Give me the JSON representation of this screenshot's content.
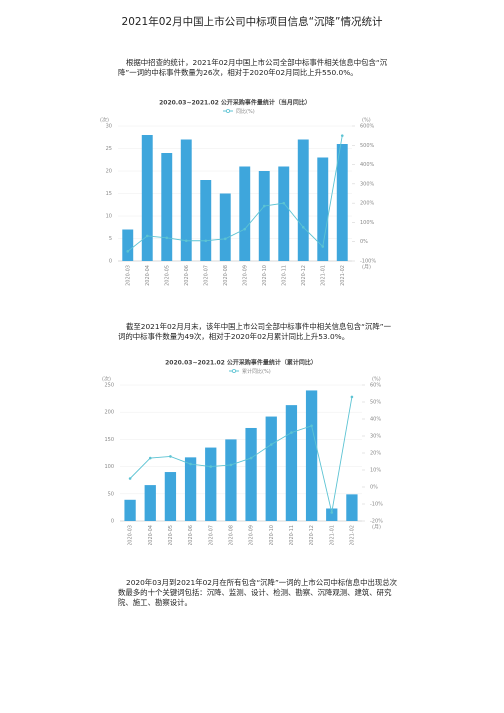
{
  "title": "2021年02月中国上市公司中标项目信息“沉降”情况统计",
  "paragraphs": [
    "根据中招查的统计，2021年02月中国上市公司全部中标事件相关信息中包含“沉降”一词的中标事件数量为26次，相对于2020年02月同比上升550.0%。",
    "截至2021年02月月末，该年中国上市公司全部中标事件中相关信息包含“沉降”一词的中标事件数量为49次，相对于2020年02月累计同比上升53.0%。",
    "2020年03月到2021年02月在所有包含“沉降”一词的上市公司中标信息中出现总次数最多的十个关键词包括：沉降、监测、设计、检测、勘察、沉降观测、建筑、研究院、施工、勘察设计。"
  ],
  "chart_data": [
    {
      "type": "bar_line",
      "title": "2020.03~2021.02 公开采购事件量统计（当月同比）",
      "ylabel": "(次)",
      "y2label": "(%)",
      "xlabel": "(月)",
      "categories": [
        "2020-03",
        "2020-04",
        "2020-05",
        "2020-06",
        "2020-07",
        "2020-08",
        "2020-09",
        "2020-10",
        "2020-11",
        "2020-12",
        "2021-01",
        "2021-02"
      ],
      "series": [
        {
          "type": "bar",
          "color": "#3ea6dc",
          "values": [
            7,
            28,
            24,
            27,
            18,
            15,
            21,
            20,
            21,
            27,
            23,
            26
          ]
        },
        {
          "type": "line",
          "name": "同比(%)",
          "color": "#5cc3d3",
          "axis": "y2",
          "values": [
            -50,
            30,
            20,
            5,
            5,
            15,
            65,
            185,
            200,
            75,
            -25,
            550
          ]
        }
      ],
      "ylim": [
        0,
        30
      ],
      "yticks": [
        0,
        5,
        10,
        15,
        20,
        25,
        30
      ],
      "y2lim": [
        -100,
        600
      ],
      "y2ticks": [
        {
          "value": -100,
          "label": "-100%"
        },
        {
          "value": 0,
          "label": "0%"
        },
        {
          "value": 100,
          "label": "100%"
        },
        {
          "value": 200,
          "label": "200%"
        },
        {
          "value": 300,
          "label": "300%"
        },
        {
          "value": 400,
          "label": "400%"
        },
        {
          "value": 500,
          "label": "500%"
        },
        {
          "value": 600,
          "label": "600%"
        }
      ],
      "grid": true
    },
    {
      "type": "bar_line",
      "title": "2020.03~2021.02 公开采购事件量统计（累计同比）",
      "ylabel": "(次)",
      "y2label": "(%)",
      "xlabel": "(月)",
      "categories": [
        "2020-03",
        "2020-04",
        "2020-05",
        "2020-06",
        "2020-07",
        "2020-08",
        "2020-09",
        "2020-10",
        "2020-11",
        "2020-12",
        "2021-01",
        "2021-02"
      ],
      "series": [
        {
          "type": "bar",
          "color": "#3ea6dc",
          "values": [
            39,
            66,
            90,
            117,
            135,
            150,
            171,
            192,
            213,
            240,
            23,
            49
          ]
        },
        {
          "type": "line",
          "name": "累计同比(%)",
          "color": "#5cc3d3",
          "axis": "y2",
          "values": [
            5,
            17,
            18,
            13.5,
            12,
            13,
            17,
            25,
            32,
            36,
            -15,
            53
          ]
        }
      ],
      "ylim": [
        0,
        250
      ],
      "yticks": [
        0,
        50,
        100,
        150,
        200,
        250
      ],
      "y2lim": [
        -20,
        60
      ],
      "y2ticks": [
        {
          "value": -20,
          "label": "-20%"
        },
        {
          "value": -10,
          "label": "-10%"
        },
        {
          "value": 0,
          "label": "0%"
        },
        {
          "value": 10,
          "label": "10%"
        },
        {
          "value": 20,
          "label": "20%"
        },
        {
          "value": 30,
          "label": "30%"
        },
        {
          "value": 40,
          "label": "40%"
        },
        {
          "value": 50,
          "label": "50%"
        },
        {
          "value": 60,
          "label": "60%"
        }
      ],
      "grid": true
    }
  ]
}
